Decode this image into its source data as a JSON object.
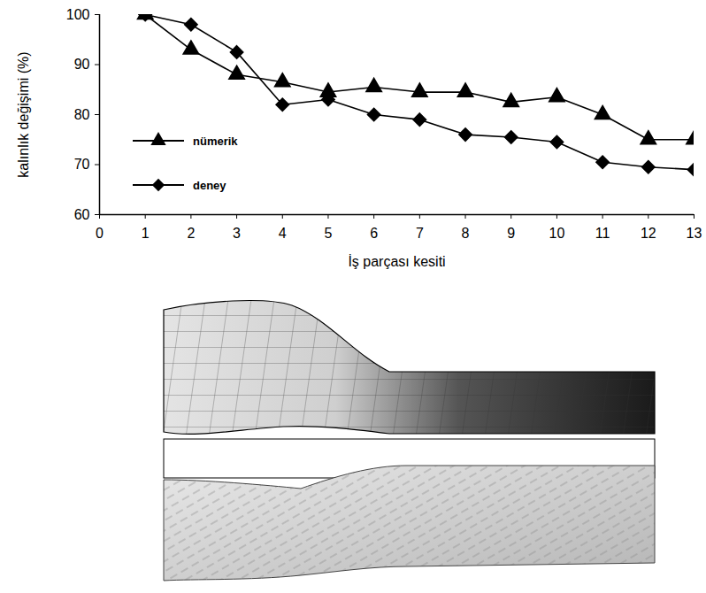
{
  "chart_data": {
    "type": "line",
    "xlabel": "İş parçası kesiti",
    "ylabel": "kalınlık değişimi (%)",
    "x": [
      1,
      2,
      3,
      4,
      5,
      6,
      7,
      8,
      9,
      10,
      11,
      12,
      13
    ],
    "series": [
      {
        "name": "nümerik",
        "color": "#000000",
        "marker": "triangle",
        "line_style": "solid",
        "values": [
          100,
          93,
          88,
          86.5,
          84.5,
          85.5,
          84.5,
          84.5,
          82.5,
          83.5,
          80,
          75,
          75
        ]
      },
      {
        "name": "deney",
        "color": "#000000",
        "marker": "diamond",
        "line_style": "solid",
        "values": [
          100,
          98,
          92.5,
          82,
          83,
          80,
          79,
          76,
          75.5,
          74.5,
          70.5,
          69.5,
          69
        ]
      }
    ],
    "xlim": [
      0,
      13
    ],
    "xticks": [
      0,
      1,
      2,
      3,
      4,
      5,
      6,
      7,
      8,
      9,
      10,
      11,
      12,
      13
    ],
    "ylim": [
      60,
      100
    ],
    "yticks": [
      60,
      70,
      80,
      90,
      100
    ],
    "grid": false,
    "legend": "left"
  }
}
